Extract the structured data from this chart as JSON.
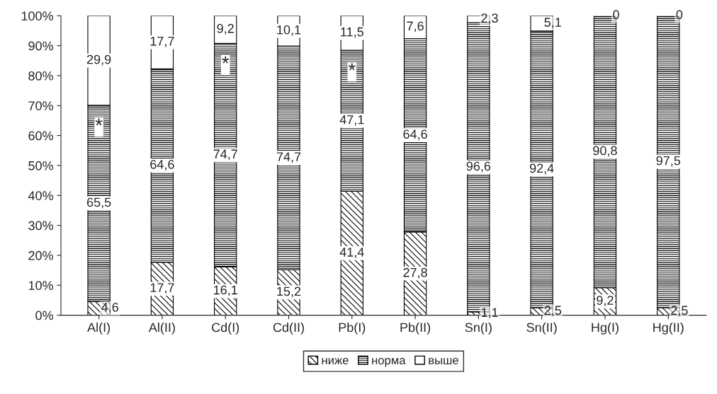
{
  "chart_data": {
    "type": "bar",
    "stacked": true,
    "categories": [
      "Al(I)",
      "Al(II)",
      "Cd(I)",
      "Cd(II)",
      "Pb(I)",
      "Pb(II)",
      "Sn(I)",
      "Sn(II)",
      "Hg(I)",
      "Hg(II)"
    ],
    "series": [
      {
        "name": "ниже",
        "color": "#000000",
        "values": [
          4.6,
          17.7,
          16.1,
          15.2,
          41.4,
          27.8,
          1.1,
          2.5,
          9.2,
          2.5
        ],
        "value_labels": [
          "4,6",
          "17,7",
          "16,1",
          "15,2",
          "41,4",
          "27,8",
          "1,1",
          "2,5",
          "9,2",
          "2,5"
        ]
      },
      {
        "name": "норма",
        "color": "#000000",
        "values": [
          65.5,
          64.6,
          74.7,
          74.7,
          47.1,
          64.6,
          96.6,
          92.4,
          90.8,
          97.5
        ],
        "value_labels": [
          "65,5",
          "64,6",
          "74,7",
          "74,7",
          "47,1",
          "64,6",
          "96,6",
          "92,4",
          "90,8",
          "97,5"
        ]
      },
      {
        "name": "выше",
        "color": "#ffffff",
        "values": [
          29.9,
          17.7,
          9.2,
          10.1,
          11.5,
          7.6,
          2.3,
          5.1,
          0,
          0
        ],
        "value_labels": [
          "29,9",
          "17,7",
          "9,2",
          "10,1",
          "11,5",
          "7,6",
          "2,3",
          "5,1",
          "0",
          "0"
        ]
      }
    ],
    "ylim": [
      0,
      100
    ],
    "yticks": [
      {
        "value": 0,
        "label": "0%"
      },
      {
        "value": 10,
        "label": "10%"
      },
      {
        "value": 20,
        "label": "20%"
      },
      {
        "value": 30,
        "label": "30%"
      },
      {
        "value": 40,
        "label": "40%"
      },
      {
        "value": 50,
        "label": "50%"
      },
      {
        "value": 60,
        "label": "60%"
      },
      {
        "value": 70,
        "label": "70%"
      },
      {
        "value": 80,
        "label": "80%"
      },
      {
        "value": 90,
        "label": "90%"
      },
      {
        "value": 100,
        "label": "100%"
      }
    ],
    "annotations": [
      {
        "text": "*",
        "x": "Al(I)",
        "y": 70.1
      },
      {
        "text": "*",
        "x": "Cd(I)",
        "y": 90.8
      },
      {
        "text": "*",
        "x": "Pb(I)",
        "y": 88.5
      }
    ],
    "grid": false,
    "legend": "bottom"
  }
}
